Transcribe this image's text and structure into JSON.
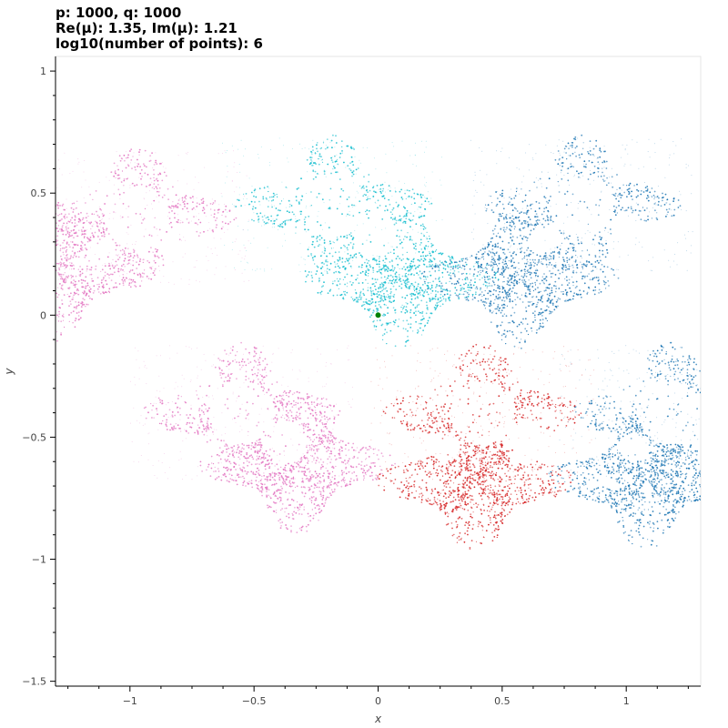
{
  "title_lines": [
    "p: 1000, q: 1000",
    "Re(μ): 1.35, Im(μ): 1.21",
    "log10(number of points): 6"
  ],
  "chart_data": {
    "type": "scatter",
    "xlabel": "x",
    "ylabel": "y",
    "xlim": [
      -1.3,
      1.3
    ],
    "ylim": [
      -1.52,
      1.06
    ],
    "x_ticks": [
      -1,
      -0.5,
      0,
      0.5,
      1
    ],
    "y_ticks": [
      1,
      0.5,
      0,
      -0.5,
      -1,
      -1.5
    ],
    "x_tick_labels": [
      "−1",
      "−0.5",
      "0",
      "0.5",
      "1"
    ],
    "y_tick_labels": [
      "1",
      "0.5",
      "0",
      "−0.5",
      "−1",
      "−1.5"
    ],
    "grid": false,
    "series_colors": [
      "#17becf",
      "#1f77b4",
      "#e377c2",
      "#d62728"
    ],
    "clusters": [
      {
        "color": "#17becf",
        "center": [
          -0.18,
          0.45
        ],
        "shift": [
          0.27,
          0.3
        ]
      },
      {
        "color": "#1f77b4",
        "center": [
          0.82,
          0.45
        ],
        "shift": [
          -0.25,
          0.3
        ]
      },
      {
        "color": "#e377c2",
        "center": [
          -0.97,
          0.4
        ],
        "shift": [
          -0.33,
          0.22
        ]
      },
      {
        "color": "#e377c2",
        "center": [
          -0.55,
          -0.4
        ],
        "shift": [
          0.22,
          0.21
        ]
      },
      {
        "color": "#d62728",
        "center": [
          0.42,
          -0.4
        ],
        "shift": [
          -0.03,
          0.28
        ]
      },
      {
        "color": "#1f77b4",
        "center": [
          1.18,
          -0.4
        ],
        "shift": [
          -0.1,
          0.27
        ]
      }
    ],
    "origin_point": {
      "x": 0,
      "y": 0,
      "color": "#008000"
    }
  }
}
